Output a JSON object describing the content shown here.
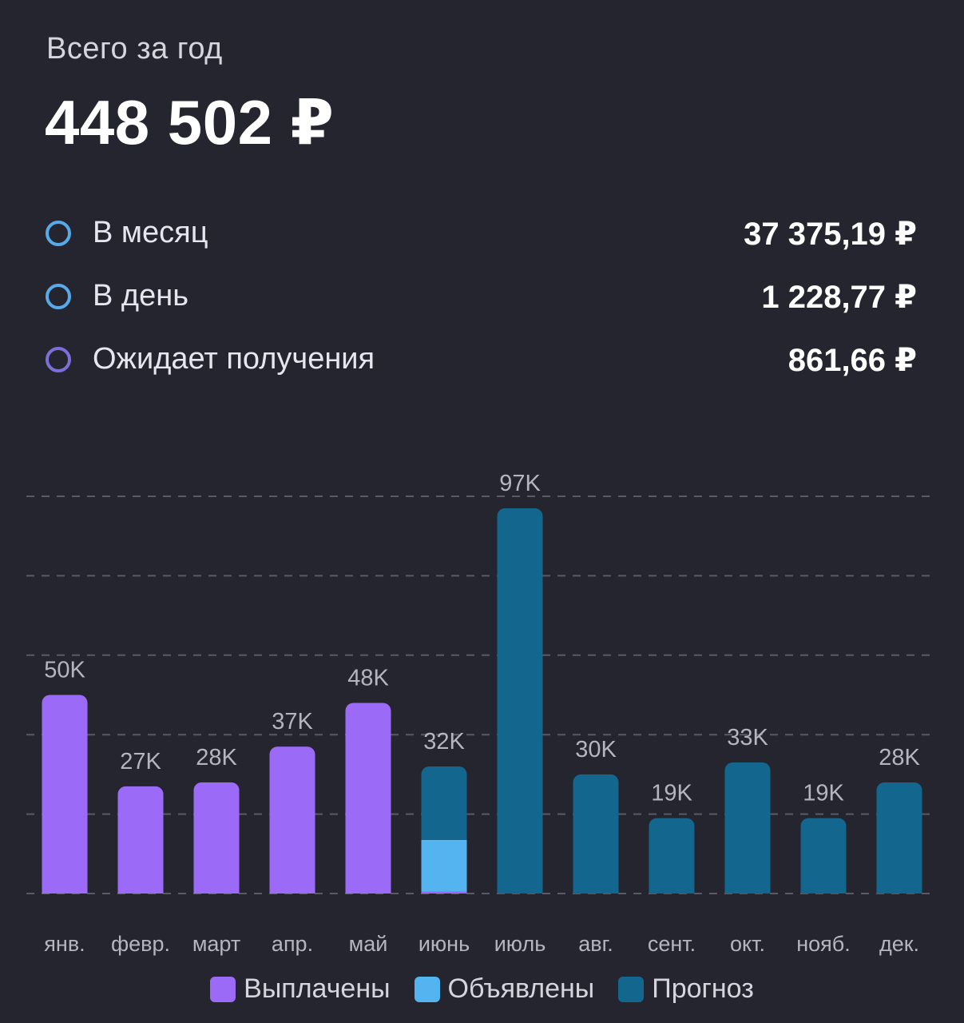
{
  "header": {
    "caption": "Всего за год",
    "total": "448 502 ₽"
  },
  "stats": [
    {
      "label": "В месяц",
      "value": "37 375,19 ₽",
      "color": "#58a9e8"
    },
    {
      "label": "В день",
      "value": "1 228,77 ₽",
      "color": "#58a9e8"
    },
    {
      "label": "Ожидает получения",
      "value": "861,66 ₽",
      "color": "#7b6fd8"
    }
  ],
  "colors": {
    "background": "#25252f",
    "paid": "#9b6af7",
    "announced": "#54b4f0",
    "forecast": "#13678f",
    "grid": "#5a5a66",
    "axis_text": "#b5b5be"
  },
  "chart_data": {
    "type": "bar",
    "stacked": true,
    "categories": [
      "янв.",
      "февр.",
      "март",
      "апр.",
      "май",
      "июнь",
      "июль",
      "авг.",
      "сент.",
      "окт.",
      "нояб.",
      "дек."
    ],
    "value_labels": [
      "50K",
      "27K",
      "28K",
      "37K",
      "48K",
      "32K",
      "97K",
      "30K",
      "19K",
      "33K",
      "19K",
      "28K"
    ],
    "series": [
      {
        "name": "Выплачены",
        "values": [
          50000,
          27000,
          28000,
          37000,
          48000,
          500,
          0,
          0,
          0,
          0,
          0,
          0
        ]
      },
      {
        "name": "Объявлены",
        "values": [
          0,
          0,
          0,
          0,
          0,
          13000,
          0,
          0,
          0,
          0,
          0,
          0
        ]
      },
      {
        "name": "Прогноз",
        "values": [
          0,
          0,
          0,
          0,
          0,
          18500,
          97000,
          30000,
          19000,
          33000,
          19000,
          28000
        ]
      }
    ],
    "ylim": [
      0,
      100000
    ],
    "grid": true,
    "legend": "bottom"
  }
}
